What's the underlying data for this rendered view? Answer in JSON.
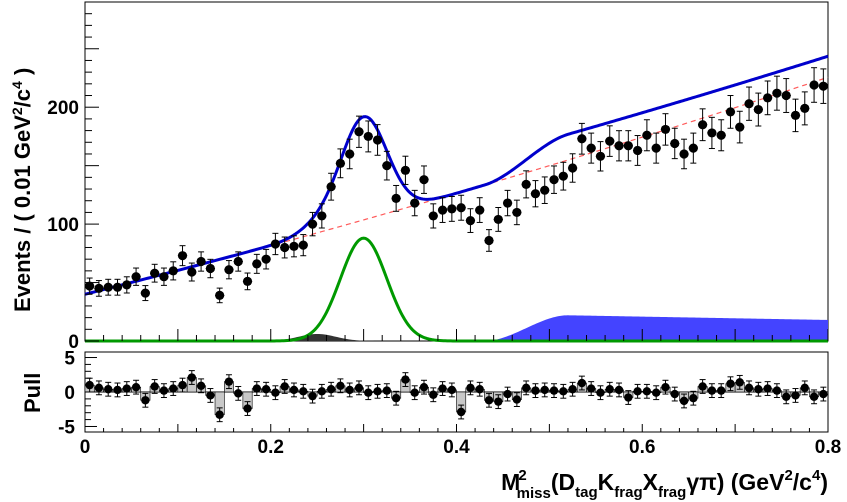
{
  "chart_data": [
    {
      "type": "scatter",
      "panel": "main fit",
      "xlabel": {
        "base": "M",
        "sup": "2",
        "sub": "miss",
        "paren_open": "(D",
        "sub_tag": "tag",
        "k": "K",
        "sub_frag1": "frag",
        "x": "X",
        "sub_frag2": "frag",
        "gp": "γπ) (GeV",
        "unit_sup1": "2",
        "unit_mid": "/c",
        "unit_sup2": "4",
        "close": ")"
      },
      "ylabel": {
        "pre": "Events / ( 0.01 GeV",
        "sup1": "2",
        "mid": "/c",
        "sup2": "4",
        "post": " )"
      },
      "xlim": [
        0,
        0.8
      ],
      "ylim": [
        0,
        290
      ],
      "x_ticks": [
        "0",
        "0.2",
        "0.4",
        "0.6",
        "0.8"
      ],
      "x_tick_values": [
        0,
        0.2,
        0.4,
        0.6,
        0.8
      ],
      "y_ticks": [
        "100",
        "200"
      ],
      "y_tick_values": [
        100,
        200
      ],
      "data_x": [
        0.005,
        0.015,
        0.025,
        0.035,
        0.045,
        0.055,
        0.065,
        0.075,
        0.085,
        0.095,
        0.105,
        0.115,
        0.125,
        0.135,
        0.145,
        0.155,
        0.165,
        0.175,
        0.185,
        0.195,
        0.205,
        0.215,
        0.225,
        0.235,
        0.245,
        0.255,
        0.265,
        0.275,
        0.285,
        0.295,
        0.305,
        0.315,
        0.325,
        0.335,
        0.345,
        0.355,
        0.365,
        0.375,
        0.385,
        0.395,
        0.405,
        0.415,
        0.425,
        0.435,
        0.445,
        0.455,
        0.465,
        0.475,
        0.485,
        0.495,
        0.505,
        0.515,
        0.525,
        0.535,
        0.545,
        0.555,
        0.565,
        0.575,
        0.585,
        0.595,
        0.605,
        0.615,
        0.625,
        0.635,
        0.645,
        0.655,
        0.665,
        0.675,
        0.685,
        0.695,
        0.705,
        0.715,
        0.725,
        0.735,
        0.745,
        0.755,
        0.765,
        0.775,
        0.785,
        0.795
      ],
      "data_y": [
        47,
        45,
        46,
        46,
        48,
        55,
        41,
        58,
        55,
        60,
        73,
        59,
        68,
        62,
        39,
        61,
        68,
        51,
        66,
        70,
        83,
        80,
        81,
        82,
        100,
        107,
        132,
        152,
        160,
        179,
        175,
        172,
        150,
        122,
        146,
        118,
        138,
        107,
        112,
        113,
        114,
        103,
        112,
        86,
        104,
        118,
        110,
        134,
        126,
        129,
        138,
        141,
        148,
        173,
        165,
        158,
        171,
        167,
        167,
        163,
        176,
        165,
        181,
        169,
        160,
        165,
        185,
        178,
        176,
        196,
        183,
        203,
        198,
        208,
        212,
        210,
        193,
        199,
        219,
        218
      ],
      "error_bars": "sqrt(N)",
      "series": [
        {
          "name": "total fit",
          "color": "#0000cc"
        },
        {
          "name": "combinatorial background",
          "color": "#ff5a5a",
          "style": "dashed"
        },
        {
          "name": "signal peak",
          "color": "#009900",
          "peak_x": 0.3,
          "peak_y": 88
        },
        {
          "name": "peaking background",
          "color": "#4444ff",
          "style": "filled"
        },
        {
          "name": "small background",
          "color": "#333333",
          "style": "filled"
        }
      ]
    },
    {
      "type": "bar",
      "panel": "pull",
      "ylabel": "Pull",
      "ylim": [
        -5.8,
        5.8
      ],
      "y_ticks": [
        "5",
        "0",
        "-5"
      ],
      "y_tick_values": [
        5,
        0,
        -5
      ],
      "pulls": [
        1.0,
        0.6,
        0.4,
        0.3,
        0.5,
        0.7,
        -1.2,
        0.8,
        0.2,
        0.5,
        1.0,
        2.1,
        0.9,
        -0.5,
        -3.3,
        1.5,
        -0.2,
        -2.4,
        0.5,
        0.4,
        -0.1,
        0.8,
        0.3,
        0.1,
        -0.6,
        0.1,
        0.4,
        0.9,
        0.3,
        0.6,
        -0.1,
        0.1,
        0.2,
        -0.9,
        1.8,
        -0.1,
        0.7,
        -0.4,
        0.5,
        0.3,
        -2.9,
        0.6,
        0.4,
        -1.2,
        -1.4,
        -0.3,
        -1.1,
        0.6,
        0.2,
        0.3,
        0.2,
        0.1,
        0.4,
        1.3,
        0.5,
        -0.1,
        0.4,
        0.3,
        -0.8,
        0.1,
        0.1,
        -0.1,
        0.7,
        -0.3,
        -1.3,
        -0.9,
        0.8,
        0.2,
        0.2,
        1.2,
        1.4,
        0.6,
        0.4,
        0.5,
        0.2,
        -0.7,
        -0.5,
        0.6,
        -0.7,
        -0.3
      ]
    }
  ]
}
